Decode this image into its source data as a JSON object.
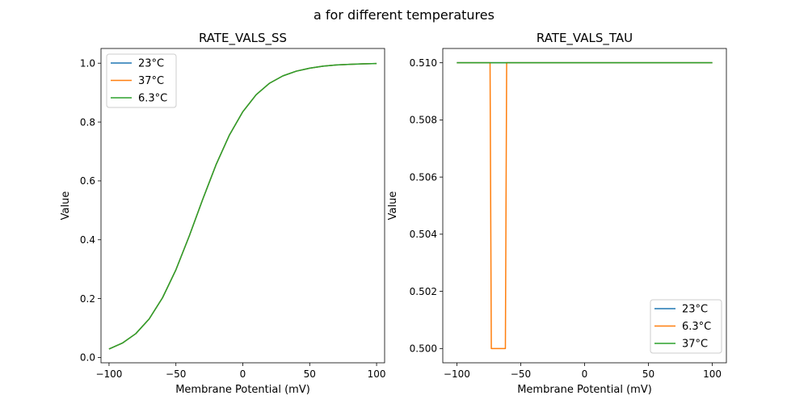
{
  "figure": {
    "suptitle": "a for different temperatures"
  },
  "chart_data": [
    {
      "type": "line",
      "title": "RATE_VALS_SS",
      "xlabel": "Membrane Potential (mV)",
      "ylabel": "Value",
      "xlim": [
        -106,
        106
      ],
      "ylim": [
        -0.018,
        1.05
      ],
      "xticks": [
        -100,
        -50,
        0,
        50,
        100
      ],
      "xtick_labels": [
        "−100",
        "−50",
        "0",
        "50",
        "100"
      ],
      "yticks": [
        0.0,
        0.2,
        0.4,
        0.6,
        0.8,
        1.0
      ],
      "ytick_labels": [
        "0.0",
        "0.2",
        "0.4",
        "0.6",
        "0.8",
        "1.0"
      ],
      "legend_position": "upper-left",
      "grid": false,
      "x": [
        -100,
        -90,
        -80,
        -70,
        -60,
        -50,
        -40,
        -30,
        -20,
        -10,
        0,
        10,
        20,
        30,
        40,
        50,
        60,
        70,
        80,
        90,
        100
      ],
      "series": [
        {
          "name": "23°C",
          "color": "#1f77b4",
          "values": [
            0.029,
            0.049,
            0.081,
            0.131,
            0.203,
            0.298,
            0.413,
            0.537,
            0.655,
            0.756,
            0.835,
            0.893,
            0.932,
            0.957,
            0.973,
            0.983,
            0.99,
            0.994,
            0.996,
            0.998,
            0.999
          ]
        },
        {
          "name": "37°C",
          "color": "#ff7f0e",
          "values": [
            0.029,
            0.049,
            0.081,
            0.131,
            0.203,
            0.298,
            0.413,
            0.537,
            0.655,
            0.756,
            0.835,
            0.893,
            0.932,
            0.957,
            0.973,
            0.983,
            0.99,
            0.994,
            0.996,
            0.998,
            0.999
          ]
        },
        {
          "name": "6.3°C",
          "color": "#2ca02c",
          "values": [
            0.029,
            0.049,
            0.081,
            0.131,
            0.203,
            0.298,
            0.413,
            0.537,
            0.655,
            0.756,
            0.835,
            0.893,
            0.932,
            0.957,
            0.973,
            0.983,
            0.99,
            0.994,
            0.996,
            0.998,
            0.999
          ]
        }
      ]
    },
    {
      "type": "line",
      "title": "RATE_VALS_TAU",
      "xlabel": "Membrane Potential (mV)",
      "ylabel": "Value",
      "xlim": [
        -111,
        111
      ],
      "ylim": [
        0.4995,
        0.5105
      ],
      "xticks": [
        -100,
        -50,
        0,
        50,
        100
      ],
      "xtick_labels": [
        "−100",
        "−50",
        "0",
        "50",
        "100"
      ],
      "yticks": [
        0.5,
        0.502,
        0.504,
        0.506,
        0.508,
        0.51
      ],
      "ytick_labels": [
        "0.500",
        "0.502",
        "0.504",
        "0.506",
        "0.508",
        "0.510"
      ],
      "legend_position": "lower-right",
      "grid": false,
      "series": [
        {
          "name": "23°C",
          "color": "#1f77b4",
          "x": [
            -100,
            100
          ],
          "values": [
            0.51,
            0.51
          ]
        },
        {
          "name": "6.3°C",
          "color": "#ff7f0e",
          "x": [
            -100,
            -74,
            -73,
            -62,
            -61,
            100
          ],
          "values": [
            0.51,
            0.51,
            0.5,
            0.5,
            0.51,
            0.51
          ]
        },
        {
          "name": "37°C",
          "color": "#2ca02c",
          "x": [
            -100,
            100
          ],
          "values": [
            0.51,
            0.51
          ]
        }
      ]
    }
  ]
}
